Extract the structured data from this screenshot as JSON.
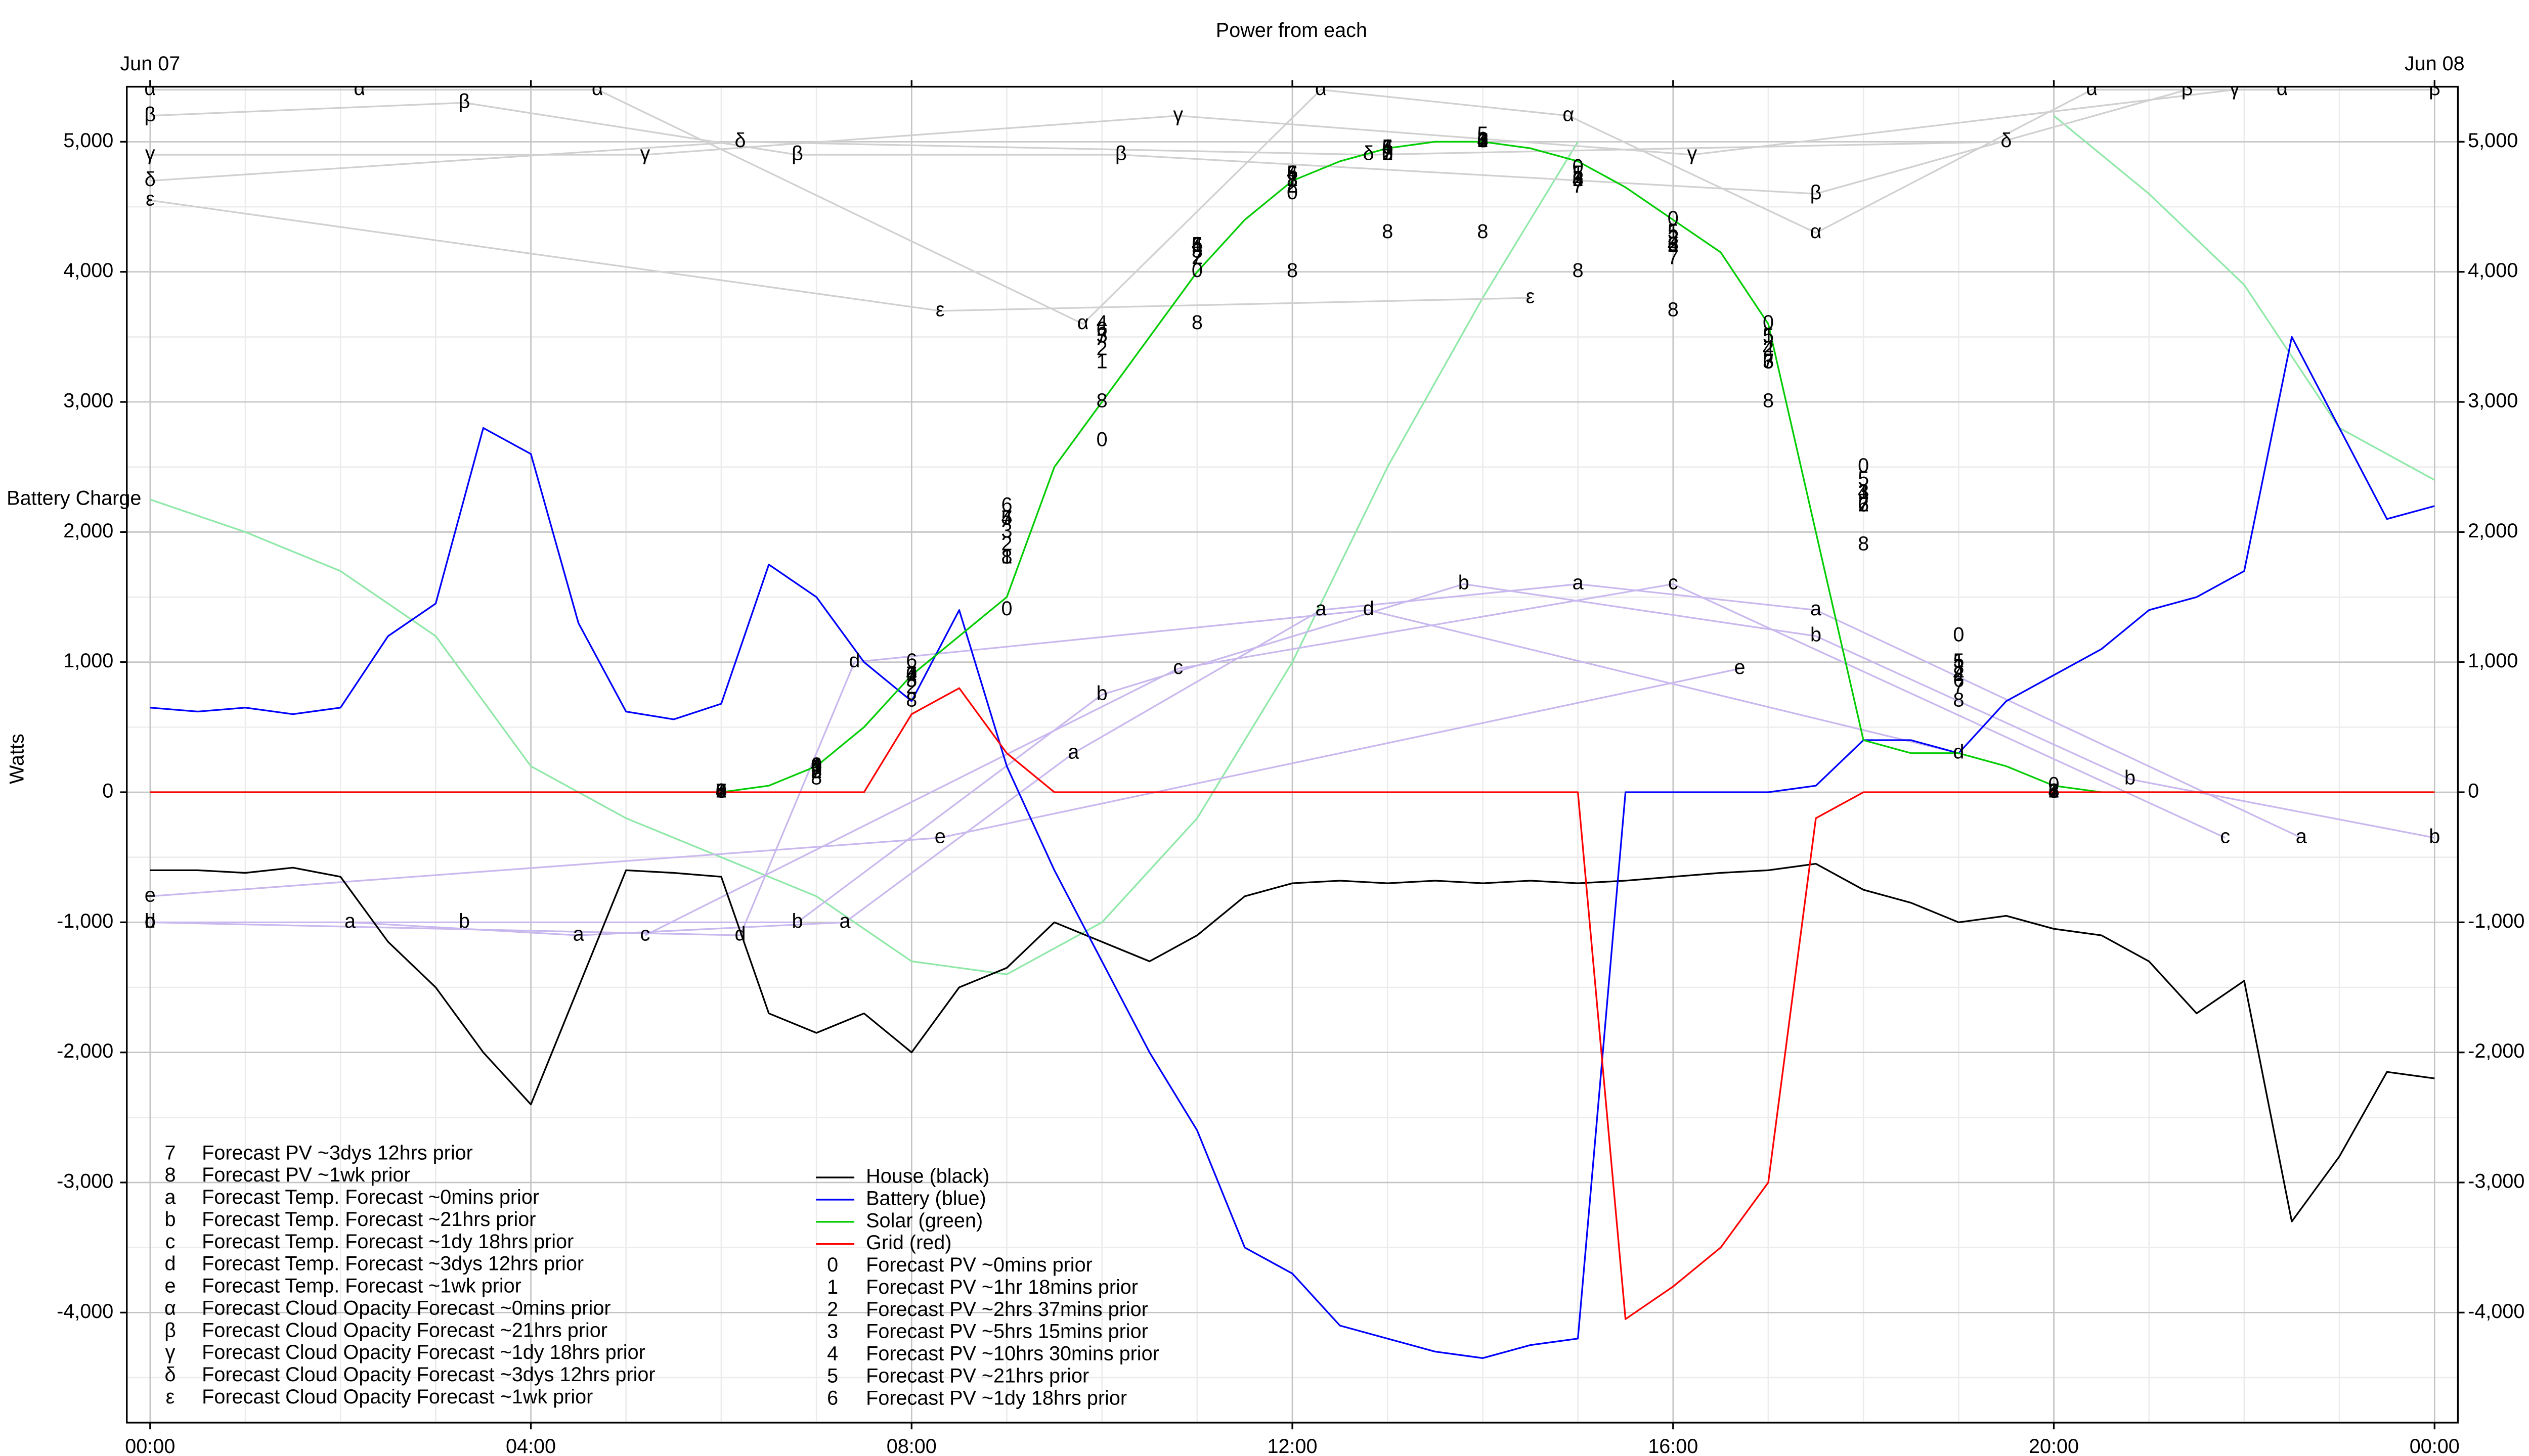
{
  "chart_data": {
    "type": "line",
    "title": "Power from each",
    "ylabel": "Watts",
    "top_labels": [
      {
        "value": 0,
        "label": "Jun 07"
      },
      {
        "value": 24,
        "label": "Jun 08"
      }
    ],
    "xlim": [
      -0.245,
      24.245
    ],
    "xticks": [
      {
        "value": 0,
        "label": "00:00"
      },
      {
        "value": 4,
        "label": "04:00"
      },
      {
        "value": 8,
        "label": "08:00"
      },
      {
        "value": 12,
        "label": "12:00"
      },
      {
        "value": 16,
        "label": "16:00"
      },
      {
        "value": 20,
        "label": "20:00"
      },
      {
        "value": 24,
        "label": "00:00"
      }
    ],
    "ylim": [
      -4846,
      5423
    ],
    "yticks": [
      {
        "value": -4000,
        "label": "-4,000"
      },
      {
        "value": -3000,
        "label": "-3,000"
      },
      {
        "value": -2000,
        "label": "-2,000"
      },
      {
        "value": -1000,
        "label": "-1,000"
      },
      0,
      {
        "value": 1000,
        "label": "1,000"
      },
      {
        "value": 2000,
        "label": "2,000"
      },
      {
        "value": 3000,
        "label": "3,000"
      },
      {
        "value": 4000,
        "label": "4,000"
      },
      {
        "value": 5000,
        "label": "5,000"
      }
    ],
    "grid": true,
    "x": [
      0,
      0.5,
      1,
      1.5,
      2,
      2.5,
      3,
      3.5,
      4,
      4.5,
      5,
      5.5,
      6,
      6.5,
      7,
      7.5,
      8,
      8.5,
      9,
      9.5,
      10,
      10.5,
      11,
      11.5,
      12,
      12.5,
      13,
      13.5,
      14,
      14.5,
      15,
      15.5,
      16,
      16.5,
      17,
      17.5,
      18,
      18.5,
      19,
      19.5,
      20,
      20.5,
      21,
      21.5,
      22,
      22.5,
      23,
      23.5,
      24
    ],
    "series": [
      {
        "name": "House (black)",
        "color": "#000000",
        "values": [
          -600,
          -600,
          -620,
          -580,
          -650,
          -1150,
          -1500,
          -2000,
          -2400,
          -1500,
          -600,
          -620,
          -650,
          -1700,
          -1850,
          -1700,
          -2000,
          -1500,
          -1350,
          -1000,
          -1150,
          -1300,
          -1100,
          -800,
          -700,
          -680,
          -700,
          -680,
          -700,
          -680,
          -700,
          -680,
          -650,
          -620,
          -600,
          -550,
          -750,
          -850,
          -1000,
          -950,
          -1050,
          -1100,
          -1300,
          -1700,
          -1450,
          -3300,
          -2800,
          -2150,
          -2200
        ]
      },
      {
        "name": "Battery (blue)",
        "color": "#0000ff",
        "values": [
          650,
          620,
          650,
          600,
          650,
          1200,
          1450,
          2800,
          2600,
          1300,
          620,
          560,
          680,
          1750,
          1500,
          1000,
          700,
          1400,
          200,
          -600,
          -1300,
          -2000,
          -2600,
          -3500,
          -3700,
          -4100,
          -4200,
          -4300,
          -4350,
          -4250,
          -4200,
          0,
          0,
          0,
          0,
          50,
          400,
          400,
          300,
          700,
          900,
          1100,
          1400,
          1500,
          1700,
          3500,
          2800,
          2100,
          2200
        ]
      },
      {
        "name": "Solar (green)",
        "color": "#00cc00",
        "values": [
          0,
          0,
          0,
          0,
          0,
          0,
          0,
          0,
          0,
          0,
          0,
          0,
          0,
          50,
          200,
          500,
          900,
          1200,
          1500,
          2500,
          3000,
          3500,
          4000,
          4400,
          4700,
          4850,
          4950,
          5000,
          5000,
          4950,
          4850,
          4650,
          4400,
          4150,
          3600,
          2000,
          400,
          300,
          300,
          200,
          50,
          0,
          0,
          0,
          0,
          0,
          0,
          0,
          0
        ]
      },
      {
        "name": "Grid (red)",
        "color": "#ff0000",
        "values": [
          0,
          0,
          0,
          0,
          0,
          0,
          0,
          0,
          0,
          0,
          0,
          0,
          0,
          0,
          0,
          0,
          600,
          800,
          300,
          0,
          0,
          0,
          0,
          0,
          0,
          0,
          0,
          0,
          0,
          0,
          0,
          -4050,
          -3800,
          -3500,
          -3000,
          -200,
          0,
          0,
          0,
          0,
          0,
          0,
          0,
          0,
          0,
          0,
          0,
          0,
          0
        ]
      }
    ],
    "battery_charge": {
      "name": "Battery Charge",
      "color": "#8fe8a8",
      "x": [
        0,
        1,
        2,
        3,
        4,
        5,
        6,
        7,
        8,
        9,
        10,
        11,
        12,
        13,
        14,
        15,
        16,
        17,
        18,
        19,
        20,
        21,
        22,
        23,
        24
      ],
      "values": [
        2250,
        2000,
        1700,
        1200,
        200,
        -200,
        -500,
        -800,
        -1300,
        -1400,
        -1000,
        -200,
        1000,
        2500,
        3800,
        5000,
        null,
        null,
        null,
        null,
        5200,
        4600,
        3900,
        2800,
        2400
      ]
    },
    "forecasts": [
      {
        "name": "Forecast PV ~0mins prior",
        "symbol": "0",
        "color": "#000000",
        "line": false,
        "x": [
          6,
          7,
          8,
          9,
          10,
          11,
          12,
          13,
          14,
          15,
          16,
          17,
          18,
          19,
          20
        ],
        "values": [
          0,
          200,
          900,
          1400,
          2700,
          4000,
          4600,
          4900,
          5000,
          4800,
          4400,
          3600,
          2500,
          1200,
          50
        ]
      },
      {
        "name": "Forecast PV ~1hr 18mins prior",
        "symbol": "1",
        "color": "#000000",
        "line": false,
        "x": [
          6,
          7,
          8,
          9,
          10,
          11,
          12,
          13,
          14,
          15,
          16,
          17,
          18,
          19,
          20
        ],
        "values": [
          0,
          200,
          900,
          1800,
          3300,
          4200,
          4700,
          4950,
          5000,
          4750,
          4300,
          3500,
          2300,
          1000,
          0
        ]
      },
      {
        "name": "Forecast PV ~2hrs 37mins prior",
        "symbol": "2",
        "color": "#000000",
        "line": false,
        "x": [
          6,
          7,
          8,
          9,
          10,
          11,
          12,
          13,
          14,
          15,
          16,
          17,
          18,
          19,
          20
        ],
        "values": [
          0,
          150,
          800,
          1900,
          3400,
          4100,
          4650,
          4900,
          5000,
          4700,
          4200,
          3400,
          2200,
          900,
          0
        ]
      },
      {
        "name": "Forecast PV ~5hrs 15mins prior",
        "symbol": "3",
        "color": "#000000",
        "line": false,
        "x": [
          6,
          7,
          8,
          9,
          10,
          11,
          12,
          13,
          14,
          15,
          16,
          17,
          18,
          19,
          20
        ],
        "values": [
          0,
          180,
          850,
          2000,
          3500,
          4150,
          4700,
          4900,
          5000,
          4700,
          4250,
          3300,
          2300,
          950,
          0
        ]
      },
      {
        "name": "Forecast PV ~10hrs 30mins prior",
        "symbol": "4",
        "color": "#000000",
        "line": false,
        "x": [
          6,
          7,
          8,
          9,
          10,
          11,
          12,
          13,
          14,
          15,
          16,
          17,
          18,
          19,
          20
        ],
        "values": [
          0,
          200,
          900,
          2100,
          3600,
          4200,
          4750,
          4950,
          5000,
          4700,
          4200,
          3400,
          2300,
          900,
          0
        ]
      },
      {
        "name": "Forecast PV ~21hrs prior",
        "symbol": "5",
        "color": "#000000",
        "line": false,
        "x": [
          6,
          7,
          8,
          9,
          10,
          11,
          12,
          13,
          14,
          15,
          16,
          17,
          18,
          19,
          20
        ],
        "values": [
          0,
          150,
          850,
          2100,
          3500,
          4200,
          4750,
          4950,
          5050,
          4750,
          4300,
          3500,
          2400,
          1000,
          0
        ]
      },
      {
        "name": "Forecast PV ~1dy 18hrs prior",
        "symbol": "6",
        "color": "#000000",
        "line": false,
        "x": [
          6,
          7,
          8,
          9,
          10,
          11,
          12,
          13,
          14,
          15,
          16,
          17,
          18,
          19,
          20
        ],
        "values": [
          0,
          200,
          1000,
          2200,
          3550,
          4200,
          4750,
          4950,
          5000,
          4700,
          4200,
          3300,
          2200,
          850,
          0
        ]
      },
      {
        "name": "Forecast PV ~3dys 12hrs prior",
        "symbol": "7",
        "color": "#000000",
        "line": false,
        "x": [
          6,
          7,
          8,
          9,
          10,
          11,
          12,
          13,
          14,
          15,
          16,
          17,
          18,
          19,
          20
        ],
        "values": [
          0,
          150,
          900,
          2100,
          3500,
          4100,
          4700,
          4900,
          5000,
          4650,
          4100,
          3300,
          2200,
          800,
          0
        ]
      },
      {
        "name": "Forecast PV ~1wk prior",
        "symbol": "8",
        "color": "#000000",
        "line": false,
        "x": [
          6,
          7,
          8,
          9,
          10,
          11,
          12,
          13,
          14,
          15,
          16,
          17,
          18,
          19,
          20
        ],
        "values": [
          0,
          100,
          700,
          1800,
          3000,
          3600,
          4000,
          4300,
          4300,
          4000,
          3700,
          3000,
          1900,
          700,
          0
        ]
      },
      {
        "name": "Forecast Temp. Forecast ~0mins prior",
        "symbol": "a",
        "color": "#c9b8ee",
        "line": true,
        "x": [
          2.1,
          4.5,
          7.3,
          9.7,
          12.3,
          15,
          17.5,
          22.6
        ],
        "values": [
          -1000,
          -1100,
          -1000,
          300,
          1400,
          1600,
          1400,
          -350
        ]
      },
      {
        "name": "Forecast Temp. Forecast ~21hrs prior",
        "symbol": "b",
        "color": "#c9b8ee",
        "line": true,
        "x": [
          0,
          3.3,
          6.8,
          10,
          13.8,
          17.5,
          20.8,
          24
        ],
        "values": [
          -1000,
          -1000,
          -1000,
          750,
          1600,
          1200,
          100,
          -350
        ]
      },
      {
        "name": "Forecast Temp. Forecast ~1dy 18hrs prior",
        "symbol": "c",
        "color": "#c9b8ee",
        "line": true,
        "x": [
          5.2,
          10.8,
          16,
          21.8
        ],
        "values": [
          -1100,
          950,
          1600,
          -350
        ]
      },
      {
        "name": "Forecast Temp. Forecast ~3dys 12hrs prior",
        "symbol": "d",
        "color": "#c9b8ee",
        "line": true,
        "x": [
          0,
          6.2,
          7.4,
          12.8,
          19
        ],
        "values": [
          -1000,
          -1100,
          1000,
          1400,
          300
        ]
      },
      {
        "name": "Forecast Temp. Forecast ~1wk prior",
        "symbol": "e",
        "color": "#c9b8ee",
        "line": true,
        "x": [
          0,
          8.3,
          16.7
        ],
        "values": [
          -800,
          -350,
          950
        ]
      },
      {
        "name": "Forecast Cloud Opacity Forecast ~0mins prior",
        "symbol": "α",
        "color": "#d0d0d0",
        "line": true,
        "x": [
          0,
          2.2,
          4.7,
          9.8,
          12.3,
          14.9,
          17.5,
          20.4,
          22.4
        ],
        "values": [
          5400,
          5400,
          5400,
          3600,
          5400,
          5200,
          4300,
          5400,
          5400
        ]
      },
      {
        "name": "Forecast Cloud Opacity Forecast ~21hrs prior",
        "symbol": "β",
        "color": "#d0d0d0",
        "line": true,
        "x": [
          0,
          3.3,
          6.8,
          10.2,
          17.5,
          21.4,
          24
        ],
        "values": [
          5200,
          5300,
          4900,
          4900,
          4600,
          5400,
          5400
        ]
      },
      {
        "name": "Forecast Cloud Opacity Forecast ~1dy 18hrs prior",
        "symbol": "γ",
        "color": "#d0d0d0",
        "line": true,
        "x": [
          0,
          5.2,
          10.8,
          16.2,
          21.9
        ],
        "values": [
          4900,
          4900,
          5200,
          4900,
          5400
        ]
      },
      {
        "name": "Forecast Cloud Opacity Forecast ~3dys 12hrs prior",
        "symbol": "δ",
        "color": "#d0d0d0",
        "line": true,
        "x": [
          0,
          6.2,
          12.8,
          19.5
        ],
        "values": [
          4700,
          5000,
          4900,
          5000
        ]
      },
      {
        "name": "Forecast Cloud Opacity Forecast ~1wk prior",
        "symbol": "ε",
        "color": "#d0d0d0",
        "line": true,
        "x": [
          0,
          8.3,
          14.5
        ],
        "values": [
          4550,
          3700,
          3800
        ]
      }
    ]
  }
}
